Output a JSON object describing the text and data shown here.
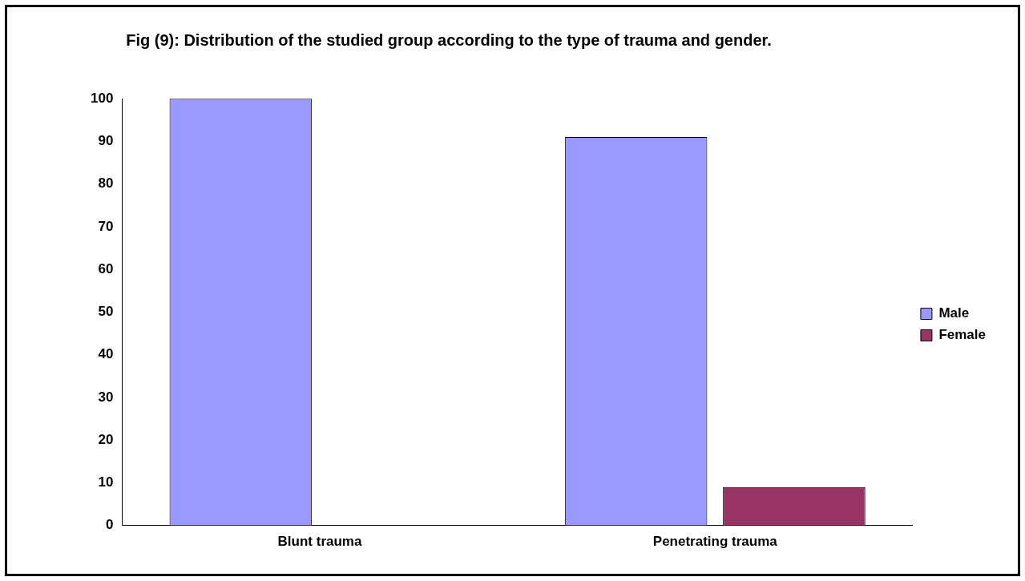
{
  "chart_data": {
    "type": "bar",
    "title": "Fig (9): Distribution of the studied group according to the type of trauma and gender.",
    "categories": [
      "Blunt trauma",
      "Penetrating trauma"
    ],
    "series": [
      {
        "name": "Male",
        "color": "#9999ff",
        "values": [
          100,
          91
        ]
      },
      {
        "name": "Female",
        "color": "#993366",
        "values": [
          0,
          9
        ]
      }
    ],
    "ylim": [
      0,
      100
    ],
    "yticks": [
      0,
      10,
      20,
      30,
      40,
      50,
      60,
      70,
      80,
      90,
      100
    ],
    "grid": false,
    "legend": "right"
  }
}
